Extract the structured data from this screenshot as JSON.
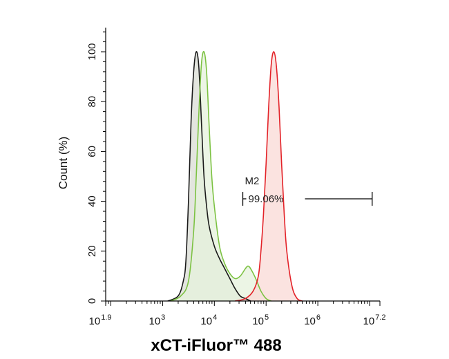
{
  "colors": {
    "isotype": "#1a1a1a",
    "isotype_fill": "#d9dcd4",
    "unstained": "#7cc242",
    "unstained_fill": "#e6f1dc",
    "stained": "#e32228",
    "stained_fill": "#f9d9d6",
    "axis": "#000000"
  },
  "chart_data": {
    "type": "area",
    "title": "",
    "xlabel": "xCT-iFluor™ 488",
    "ylabel": "Count (%)",
    "x_scale": "log10",
    "xlim": [
      1.9,
      7.2
    ],
    "ylim": [
      0,
      100
    ],
    "x_tick_labels": [
      {
        "base": "10",
        "exp": "1.9"
      },
      {
        "base": "10",
        "exp": "3"
      },
      {
        "base": "10",
        "exp": "4"
      },
      {
        "base": "10",
        "exp": "5"
      },
      {
        "base": "10",
        "exp": "6"
      },
      {
        "base": "10",
        "exp": "7.2"
      }
    ],
    "y_ticks": [
      "0",
      "20",
      "40",
      "60",
      "80",
      "100"
    ],
    "series": [
      {
        "color_key": "isotype",
        "x": [
          3.1,
          3.3,
          3.4,
          3.45,
          3.5,
          3.55,
          3.6,
          3.65,
          3.7,
          3.75,
          3.8,
          3.85,
          3.9,
          4.0,
          4.1,
          4.2,
          4.3,
          4.4,
          4.5,
          4.6,
          4.7
        ],
        "y": [
          0,
          2,
          8,
          16,
          40,
          72,
          92,
          100,
          94,
          72,
          50,
          38,
          30,
          22,
          17,
          13,
          9,
          5,
          2,
          1,
          0
        ]
      },
      {
        "color_key": "unstained",
        "x": [
          3.15,
          3.35,
          3.5,
          3.6,
          3.65,
          3.7,
          3.75,
          3.8,
          3.85,
          3.9,
          3.95,
          4.0,
          4.1,
          4.2,
          4.3,
          4.4,
          4.5,
          4.6,
          4.65,
          4.7,
          4.8,
          4.9,
          5.0,
          5.1
        ],
        "y": [
          0,
          2,
          8,
          28,
          50,
          75,
          95,
          100,
          92,
          70,
          50,
          38,
          22,
          15,
          11,
          9,
          10,
          13,
          14,
          13,
          9,
          4,
          1,
          0
        ]
      },
      {
        "color_key": "stained",
        "x": [
          4.4,
          4.6,
          4.75,
          4.85,
          4.9,
          4.95,
          5.0,
          5.05,
          5.1,
          5.15,
          5.2,
          5.25,
          5.3,
          5.35,
          5.4,
          5.5,
          5.6,
          5.7
        ],
        "y": [
          0,
          1,
          4,
          10,
          20,
          35,
          55,
          78,
          95,
          100,
          94,
          78,
          55,
          35,
          20,
          6,
          1,
          0
        ]
      }
    ],
    "annotations": [
      {
        "type": "gate",
        "name": "M2",
        "value": "99.06%",
        "x_start": 4.55,
        "x_end": 7.05,
        "y": 41
      }
    ]
  }
}
